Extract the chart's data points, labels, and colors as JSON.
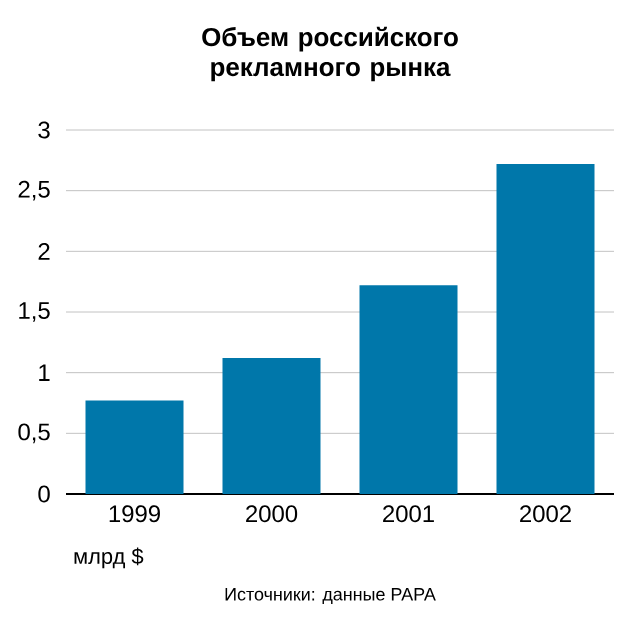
{
  "chart_data": {
    "type": "bar",
    "title": "Объем российского рекламного рынка",
    "annotations": [
      "млрд $",
      "Источники: данные РАРА"
    ],
    "categories": [
      "1999",
      "2000",
      "2001",
      "2002"
    ],
    "values": [
      0.77,
      1.12,
      1.72,
      2.72
    ],
    "color": "#0077aa",
    "ylim": [
      0,
      3
    ],
    "yticks": [
      0,
      {
        "value": 0.5,
        "label": "0,5"
      },
      1,
      {
        "value": 1.5,
        "label": "1,5"
      },
      2,
      {
        "value": 2.5,
        "label": "2,5"
      },
      3
    ],
    "grid": "y"
  }
}
